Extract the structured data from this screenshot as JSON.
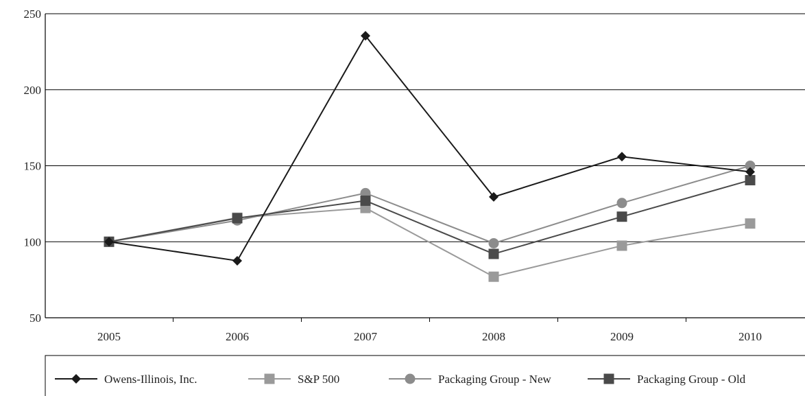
{
  "chart_data": {
    "type": "line",
    "title": "",
    "xlabel": "",
    "ylabel": "",
    "categories": [
      "2005",
      "2006",
      "2007",
      "2008",
      "2009",
      "2010"
    ],
    "ylim": [
      50,
      250
    ],
    "yticks": [
      50,
      100,
      150,
      200,
      250
    ],
    "grid": "horizontal",
    "legend_position": "bottom",
    "series": [
      {
        "name": "Owens-Illinois, Inc.",
        "marker": "diamond",
        "color": "#1a1a1a",
        "values": [
          100,
          87.5,
          235.5,
          129.5,
          156,
          146
        ]
      },
      {
        "name": "S&P 500",
        "marker": "square",
        "color": "#9a9a9a",
        "values": [
          100,
          115.8,
          122.2,
          77,
          97.4,
          112
        ]
      },
      {
        "name": "Packaging Group - New",
        "marker": "circle",
        "color": "#8c8c8c",
        "values": [
          100,
          114,
          132,
          99,
          125.5,
          150
        ]
      },
      {
        "name": "Packaging Group - Old",
        "marker": "square",
        "color": "#4a4a4a",
        "values": [
          100,
          115.5,
          127,
          92,
          116.5,
          140.5
        ]
      }
    ]
  }
}
